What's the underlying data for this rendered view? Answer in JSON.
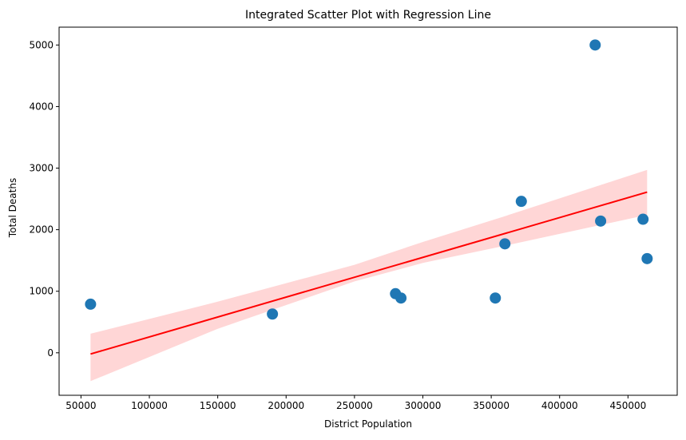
{
  "chart_data": {
    "type": "scatter",
    "title": "Integrated Scatter Plot with Regression Line",
    "xlabel": "District Population",
    "ylabel": "Total Deaths",
    "xlim": [
      34000,
      486000
    ],
    "ylim": [
      -690,
      5290
    ],
    "xticks": [
      50000,
      100000,
      150000,
      200000,
      250000,
      300000,
      350000,
      400000,
      450000
    ],
    "yticks": [
      0,
      1000,
      2000,
      3000,
      4000,
      5000
    ],
    "grid": false,
    "legend": "none",
    "series": [
      {
        "points": [
          {
            "x": 57000,
            "y": 790
          },
          {
            "x": 190000,
            "y": 630
          },
          {
            "x": 280000,
            "y": 960
          },
          {
            "x": 284000,
            "y": 890
          },
          {
            "x": 353000,
            "y": 890
          },
          {
            "x": 360000,
            "y": 1770
          },
          {
            "x": 372000,
            "y": 2460
          },
          {
            "x": 426000,
            "y": 5000
          },
          {
            "x": 430000,
            "y": 2140
          },
          {
            "x": 461000,
            "y": 2170
          },
          {
            "x": 464000,
            "y": 1530
          }
        ]
      }
    ],
    "regression": {
      "x_start": 57000,
      "y_start": -20,
      "x_end": 464000,
      "y_end": 2610,
      "ci_band": [
        {
          "x": 57000,
          "lower": -460,
          "upper": 310
        },
        {
          "x": 150000,
          "lower": 390,
          "upper": 830
        },
        {
          "x": 250000,
          "lower": 1160,
          "upper": 1430
        },
        {
          "x": 300000,
          "lower": 1460,
          "upper": 1800
        },
        {
          "x": 360000,
          "lower": 1740,
          "upper": 2220
        },
        {
          "x": 464000,
          "lower": 2240,
          "upper": 2970
        }
      ]
    },
    "colors": {
      "points": "#1f77b4",
      "line": "#ff0000",
      "band": "#ffd6d6"
    }
  }
}
